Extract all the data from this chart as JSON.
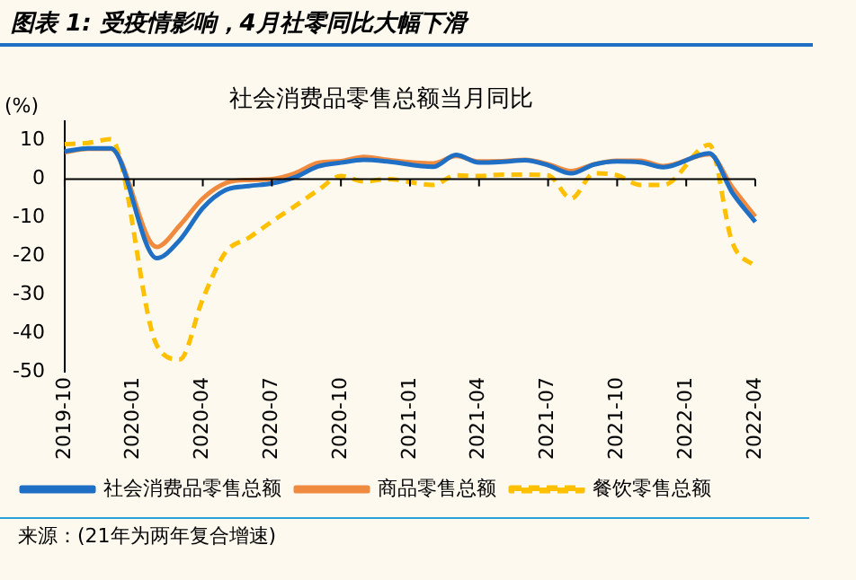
{
  "chart_data": {
    "type": "line",
    "title": "图表 1: 受疫情影响，4月社零同比大幅下滑",
    "subtitle": "社会消费品零售总额当月同比",
    "ylabel": "(%)",
    "categories": [
      "2019-10",
      null,
      null,
      "2020-01",
      null,
      null,
      "2020-04",
      null,
      null,
      "2020-07",
      null,
      null,
      "2020-10",
      null,
      null,
      "2021-01",
      null,
      null,
      "2021-04",
      null,
      null,
      "2021-07",
      null,
      null,
      "2021-10",
      null,
      null,
      "2022-01",
      null,
      null,
      "2022-04"
    ],
    "series": [
      {
        "name": "社会消费品零售总额",
        "color": "#1f6fc5",
        "values": [
          7.2,
          8.0,
          8.0,
          null,
          -20.5,
          -15.8,
          -7.5,
          -2.8,
          -1.8,
          -1.1,
          0.5,
          3.3,
          4.3,
          5.0,
          4.6,
          null,
          3.2,
          6.3,
          4.3,
          4.5,
          4.9,
          3.6,
          1.5,
          3.8,
          4.6,
          4.4,
          3.1,
          null,
          6.7,
          -3.5,
          -11.1
        ]
      },
      {
        "name": "商品零售总额",
        "color": "#f08a3e",
        "values": [
          7.0,
          7.9,
          7.9,
          null,
          -17.6,
          -12.0,
          -5.0,
          -1.0,
          -0.2,
          0.0,
          1.5,
          4.2,
          4.7,
          5.8,
          5.0,
          null,
          4.1,
          6.0,
          4.6,
          4.7,
          5.0,
          3.9,
          2.1,
          3.9,
          4.8,
          4.8,
          3.4,
          null,
          6.5,
          -2.1,
          -9.7
        ]
      },
      {
        "name": "餐饮零售总额",
        "color": "#ffc000",
        "line_style": "dashed",
        "values": [
          9.1,
          9.4,
          10.4,
          null,
          -43.1,
          -46.8,
          -31.1,
          -18.9,
          -15.2,
          -11.0,
          -7.0,
          -2.9,
          0.8,
          -0.6,
          0.0,
          null,
          -1.5,
          1.0,
          0.8,
          1.2,
          1.2,
          1.0,
          -5.0,
          1.5,
          1.0,
          -1.5,
          -1.5,
          null,
          8.9,
          -16.4,
          -22.7
        ]
      }
    ],
    "ylim": [
      -50,
      15
    ],
    "yticks": [
      -50,
      -40,
      -30,
      -20,
      -10,
      0,
      10
    ],
    "legend": "bottom",
    "marker": "none",
    "ref_lines": [
      {
        "axis": "y",
        "value": 0,
        "color": "#000000"
      }
    ],
    "annotations": [
      "来源：(21年为两年复合增速)"
    ]
  }
}
